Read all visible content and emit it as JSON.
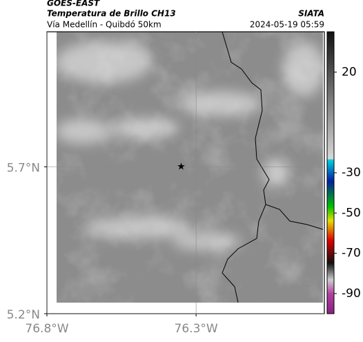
{
  "header": {
    "satellite": "GOES-EAST",
    "product": "Temperatura de Brillo CH13",
    "region": "Vía Medellín - Quibdó 50km",
    "source": "SIATA",
    "timestamp": "2024-05-19 05:59"
  },
  "map": {
    "xlim": [
      -76.8,
      -75.87
    ],
    "ylim": [
      5.2,
      6.16
    ],
    "xticks": [
      {
        "value": -76.8,
        "label": "76.8°W"
      },
      {
        "value": -76.3,
        "label": "76.3°W"
      }
    ],
    "yticks": [
      {
        "value": 5.2,
        "label": "5.2°N"
      },
      {
        "value": 5.7,
        "label": "5.7°N"
      }
    ],
    "grid": true,
    "marker": {
      "lon": -76.35,
      "lat": 5.7
    }
  },
  "colorbar": {
    "clim": [
      -100,
      40
    ],
    "ticks": [
      20,
      -30,
      -50,
      -70,
      -90
    ]
  }
}
